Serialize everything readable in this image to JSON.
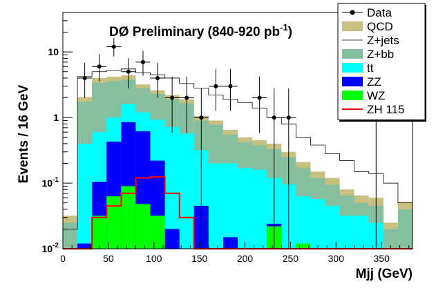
{
  "chart_data": {
    "type": "histogram",
    "title": "DØ Preliminary (840-920 pb",
    "title_superscript": "-1",
    "title_close": ")",
    "xlabel": "Mjj (GeV)",
    "ylabel": "Events / 16 GeV",
    "yscale": "log",
    "xlim": [
      0,
      384
    ],
    "ylim": [
      0.01,
      40
    ],
    "bin_width": 16,
    "x_ticks": [
      0,
      50,
      100,
      150,
      200,
      250,
      300,
      350
    ],
    "x_tick_labels": [
      "0",
      "50",
      "100",
      "150",
      "200",
      "250",
      "300",
      "350"
    ],
    "y_ticks": [
      {
        "value": 0.01,
        "label": "10",
        "sup": "-2"
      },
      {
        "value": 0.1,
        "label": "10",
        "sup": "-1"
      },
      {
        "value": 1,
        "label": "1",
        "sup": ""
      },
      {
        "value": 10,
        "label": "10",
        "sup": ""
      }
    ],
    "legend_position": "top-right",
    "legend": [
      {
        "key": "data",
        "label": "Data"
      },
      {
        "key": "qcd",
        "label": "QCD"
      },
      {
        "key": "zjets",
        "label": "Z+jets"
      },
      {
        "key": "zbb",
        "label": "Z+bb"
      },
      {
        "key": "tt",
        "label": "tt"
      },
      {
        "key": "zz",
        "label": "ZZ"
      },
      {
        "key": "wz",
        "label": "WZ"
      },
      {
        "key": "zh",
        "label": "ZH 115"
      }
    ],
    "colors": {
      "qcd": "#c8c081",
      "zjets": "#ffffff",
      "zbb": "#86bfa0",
      "tt": "#00ffff",
      "zz": "#0000ff",
      "wz": "#00ff00",
      "zh": "#ff0000",
      "data": "#000000"
    },
    "stack_order": [
      "qcd",
      "zbb",
      "tt",
      "zz",
      "wz"
    ],
    "series": {
      "zjets": [
        0.02,
        4.2,
        5.0,
        5.2,
        5.5,
        4.8,
        4.5,
        4.0,
        3.3,
        2.8,
        2.2,
        1.9,
        1.7,
        1.4,
        1.0,
        0.8,
        0.5,
        0.38,
        0.28,
        0.22,
        0.15,
        0.14,
        0.1,
        0.05
      ],
      "qcd": [
        0.032,
        2.05,
        4.0,
        4.2,
        4.4,
        3.2,
        2.6,
        2.2,
        1.9,
        1.05,
        0.9,
        0.65,
        0.5,
        0.45,
        0.4,
        0.3,
        0.21,
        0.15,
        0.12,
        0.08,
        0.065,
        0.06,
        0.025,
        0.052
      ],
      "zbb": [
        0.025,
        1.75,
        3.4,
        3.6,
        3.8,
        2.8,
        2.3,
        1.9,
        1.65,
        0.9,
        0.78,
        0.55,
        0.42,
        0.38,
        0.33,
        0.25,
        0.17,
        0.12,
        0.095,
        0.065,
        0.05,
        0.045,
        0.02,
        0.04
      ],
      "tt": [
        0.01,
        0.4,
        0.6,
        1.0,
        1.6,
        1.2,
        0.93,
        0.72,
        0.57,
        0.32,
        0.2,
        0.2,
        0.17,
        0.16,
        0.12,
        0.096,
        0.063,
        0.057,
        0.045,
        0.032,
        0.032,
        0.025,
        0.01,
        0.01
      ],
      "zz": [
        0.01,
        0.012,
        0.105,
        0.43,
        0.85,
        0.62,
        0.22,
        0.02,
        0.01,
        0.045,
        0.01,
        0.015,
        0.01,
        0.01,
        0.024,
        0.01,
        0.01,
        0.01,
        0.01,
        0.01,
        0.01,
        0.01,
        0.01,
        0.01
      ],
      "wz": [
        0.01,
        0.01,
        0.032,
        0.063,
        0.09,
        0.048,
        0.032,
        0.01,
        0.01,
        0.01,
        0.01,
        0.01,
        0.01,
        0.01,
        0.022,
        0.01,
        0.012,
        0.01,
        0.01,
        0.01,
        0.01,
        0.01,
        0.01,
        0.01
      ],
      "zh": [
        0.01,
        0.01,
        0.03,
        0.045,
        0.07,
        0.12,
        0.125,
        0.07,
        0.03,
        0.01,
        0.01,
        0.01,
        0.01,
        0.01,
        0.01,
        0.01,
        0.01,
        0.01,
        0.01,
        0.01,
        0.01,
        0.01,
        0.01,
        0.01
      ]
    },
    "data_points": [
      {
        "x": 24,
        "y": 4.0
      },
      {
        "x": 40,
        "y": 6.0
      },
      {
        "x": 56,
        "y": 12.0
      },
      {
        "x": 72,
        "y": 5.0
      },
      {
        "x": 88,
        "y": 7.0
      },
      {
        "x": 104,
        "y": 4.0
      },
      {
        "x": 120,
        "y": 2.0
      },
      {
        "x": 136,
        "y": 2.0
      },
      {
        "x": 152,
        "y": 1.0
      },
      {
        "x": 168,
        "y": 3.0
      },
      {
        "x": 184,
        "y": 3.0
      },
      {
        "x": 216,
        "y": 2.0
      },
      {
        "x": 232,
        "y": 1.0
      },
      {
        "x": 248,
        "y": 1.0
      },
      {
        "x": 344,
        "y": 1.0
      }
    ]
  }
}
